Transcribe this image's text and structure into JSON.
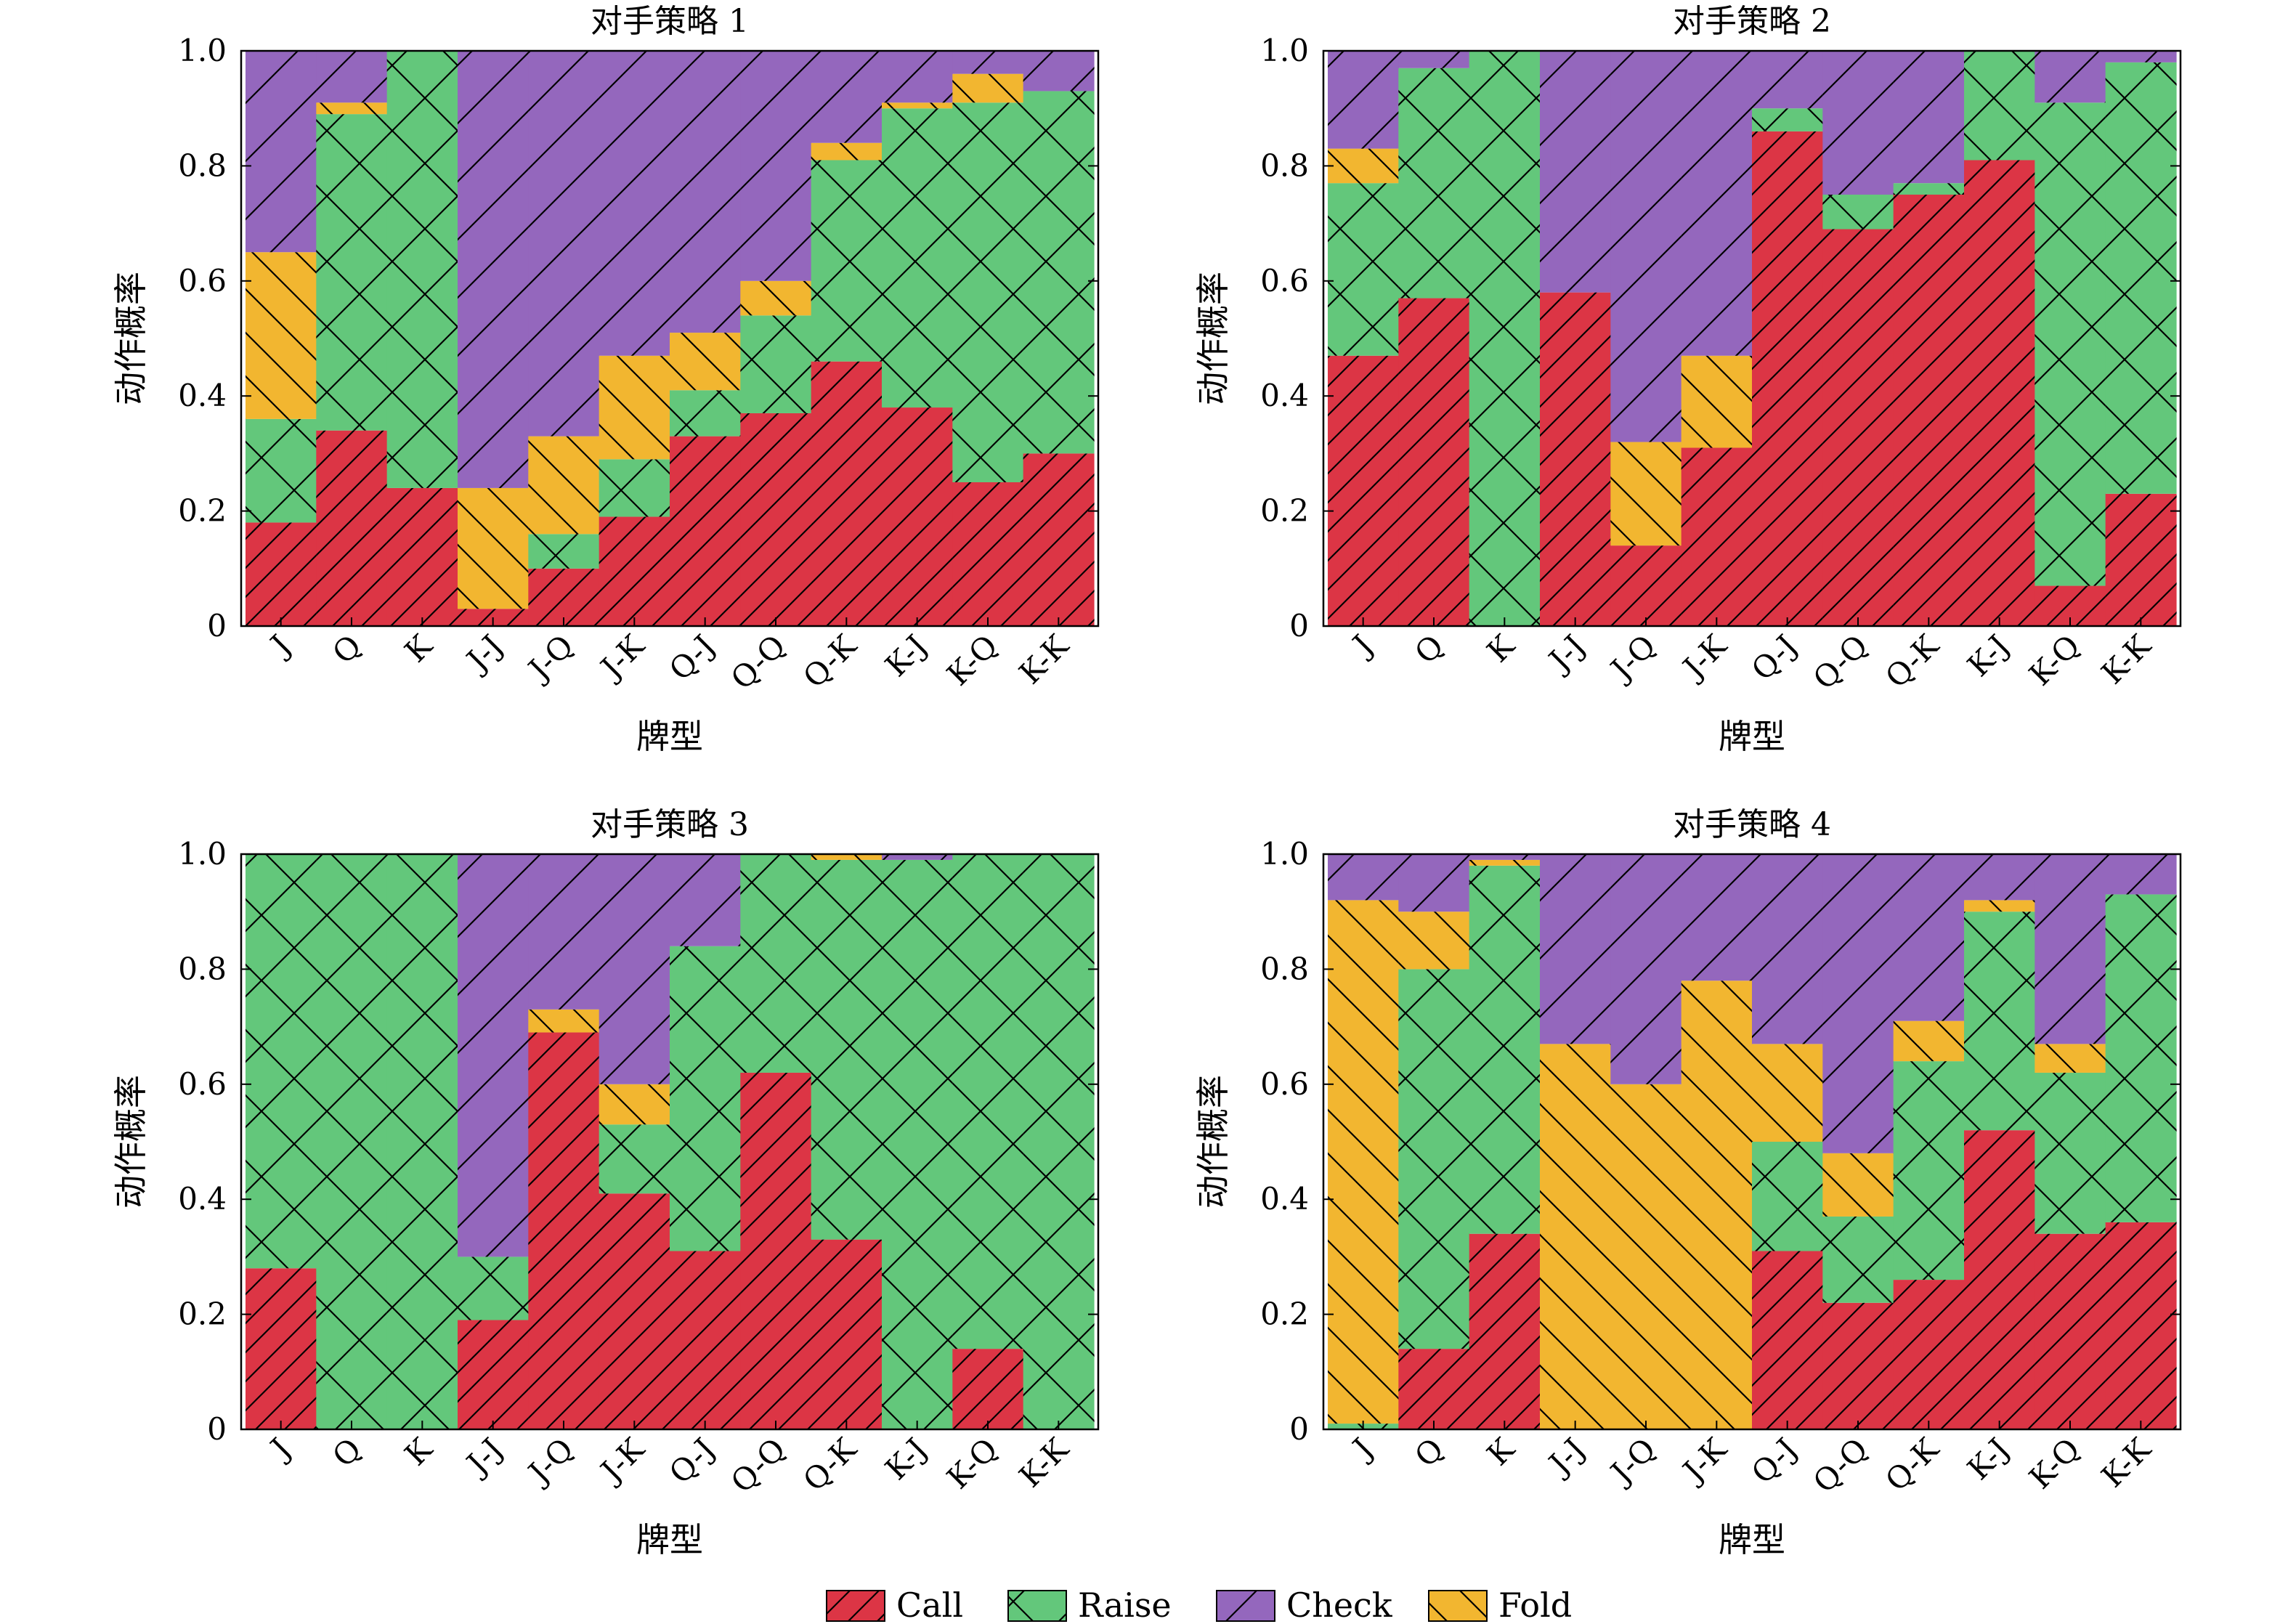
{
  "legend": [
    {
      "key": "call",
      "label": "Call"
    },
    {
      "key": "raise",
      "label": "Raise"
    },
    {
      "key": "check",
      "label": "Check"
    },
    {
      "key": "fold",
      "label": "Fold"
    }
  ],
  "colors": {
    "call": "#dc3545",
    "raise": "#63c77b",
    "check": "#9467bd",
    "fold": "#f2b630"
  },
  "chart_data": [
    {
      "type": "bar",
      "stacked": true,
      "title": "对手策略 1",
      "xlabel": "牌型",
      "ylabel": "动作概率",
      "ylim": [
        0,
        1
      ],
      "yticks": [
        "0",
        "0.2",
        "0.4",
        "0.6",
        "0.8",
        "1.0"
      ],
      "categories": [
        "J",
        "Q",
        "K",
        "J-J",
        "J-Q",
        "J-K",
        "Q-J",
        "Q-Q",
        "Q-K",
        "K-J",
        "K-Q",
        "K-K"
      ],
      "series": [
        {
          "name": "Call",
          "values": [
            0.18,
            0.34,
            0.24,
            0.03,
            0.1,
            0.19,
            0.33,
            0.37,
            0.46,
            0.38,
            0.25,
            0.3
          ]
        },
        {
          "name": "Raise",
          "values": [
            0.18,
            0.55,
            0.76,
            0.0,
            0.06,
            0.1,
            0.08,
            0.17,
            0.35,
            0.52,
            0.66,
            0.63
          ]
        },
        {
          "name": "Fold",
          "values": [
            0.29,
            0.02,
            0.0,
            0.21,
            0.17,
            0.18,
            0.1,
            0.06,
            0.03,
            0.01,
            0.05,
            0.0
          ]
        },
        {
          "name": "Check",
          "values": [
            0.35,
            0.09,
            0.0,
            0.76,
            0.67,
            0.53,
            0.49,
            0.4,
            0.16,
            0.09,
            0.04,
            0.07
          ]
        }
      ]
    },
    {
      "type": "bar",
      "stacked": true,
      "title": "对手策略 2",
      "xlabel": "牌型",
      "ylabel": "动作概率",
      "ylim": [
        0,
        1
      ],
      "yticks": [
        "0",
        "0.2",
        "0.4",
        "0.6",
        "0.8",
        "1.0"
      ],
      "categories": [
        "J",
        "Q",
        "K",
        "J-J",
        "J-Q",
        "J-K",
        "Q-J",
        "Q-Q",
        "Q-K",
        "K-J",
        "K-Q",
        "K-K"
      ],
      "series": [
        {
          "name": "Call",
          "values": [
            0.47,
            0.57,
            0.0,
            0.58,
            0.14,
            0.31,
            0.86,
            0.69,
            0.75,
            0.81,
            0.07,
            0.23
          ]
        },
        {
          "name": "Raise",
          "values": [
            0.3,
            0.4,
            1.0,
            0.0,
            0.0,
            0.0,
            0.04,
            0.06,
            0.02,
            0.19,
            0.84,
            0.75
          ]
        },
        {
          "name": "Fold",
          "values": [
            0.06,
            0.0,
            0.0,
            0.0,
            0.18,
            0.16,
            0.0,
            0.0,
            0.0,
            0.0,
            0.0,
            0.0
          ]
        },
        {
          "name": "Check",
          "values": [
            0.17,
            0.03,
            0.0,
            0.42,
            0.68,
            0.53,
            0.1,
            0.25,
            0.23,
            0.0,
            0.09,
            0.02
          ]
        }
      ]
    },
    {
      "type": "bar",
      "stacked": true,
      "title": "对手策略 3",
      "xlabel": "牌型",
      "ylabel": "动作概率",
      "ylim": [
        0,
        1
      ],
      "yticks": [
        "0",
        "0.2",
        "0.4",
        "0.6",
        "0.8",
        "1.0"
      ],
      "categories": [
        "J",
        "Q",
        "K",
        "J-J",
        "J-Q",
        "J-K",
        "Q-J",
        "Q-Q",
        "Q-K",
        "K-J",
        "K-Q",
        "K-K"
      ],
      "series": [
        {
          "name": "Call",
          "values": [
            0.28,
            0.0,
            0.0,
            0.19,
            0.69,
            0.41,
            0.31,
            0.62,
            0.33,
            0.0,
            0.14,
            0.0
          ]
        },
        {
          "name": "Raise",
          "values": [
            0.72,
            1.0,
            1.0,
            0.11,
            0.0,
            0.12,
            0.53,
            0.38,
            0.66,
            0.99,
            0.86,
            1.0
          ]
        },
        {
          "name": "Fold",
          "values": [
            0.0,
            0.0,
            0.0,
            0.0,
            0.04,
            0.07,
            0.0,
            0.0,
            0.01,
            0.0,
            0.0,
            0.0
          ]
        },
        {
          "name": "Check",
          "values": [
            0.0,
            0.0,
            0.0,
            0.7,
            0.27,
            0.4,
            0.16,
            0.0,
            0.0,
            0.01,
            0.0,
            0.0
          ]
        }
      ]
    },
    {
      "type": "bar",
      "stacked": true,
      "title": "对手策略 4",
      "xlabel": "牌型",
      "ylabel": "动作概率",
      "ylim": [
        0,
        1
      ],
      "yticks": [
        "0",
        "0.2",
        "0.4",
        "0.6",
        "0.8",
        "1.0"
      ],
      "categories": [
        "J",
        "Q",
        "K",
        "J-J",
        "J-Q",
        "J-K",
        "Q-J",
        "Q-Q",
        "Q-K",
        "K-J",
        "K-Q",
        "K-K"
      ],
      "series": [
        {
          "name": "Call",
          "values": [
            0.0,
            0.14,
            0.34,
            0.0,
            0.0,
            0.0,
            0.31,
            0.22,
            0.26,
            0.52,
            0.34,
            0.36
          ]
        },
        {
          "name": "Raise",
          "values": [
            0.01,
            0.66,
            0.64,
            0.0,
            0.0,
            0.0,
            0.19,
            0.15,
            0.38,
            0.38,
            0.28,
            0.57
          ]
        },
        {
          "name": "Fold",
          "values": [
            0.91,
            0.1,
            0.01,
            0.67,
            0.6,
            0.78,
            0.17,
            0.11,
            0.07,
            0.02,
            0.05,
            0.0
          ]
        },
        {
          "name": "Check",
          "values": [
            0.08,
            0.1,
            0.01,
            0.33,
            0.4,
            0.22,
            0.33,
            0.52,
            0.29,
            0.08,
            0.33,
            0.07
          ]
        }
      ]
    }
  ]
}
